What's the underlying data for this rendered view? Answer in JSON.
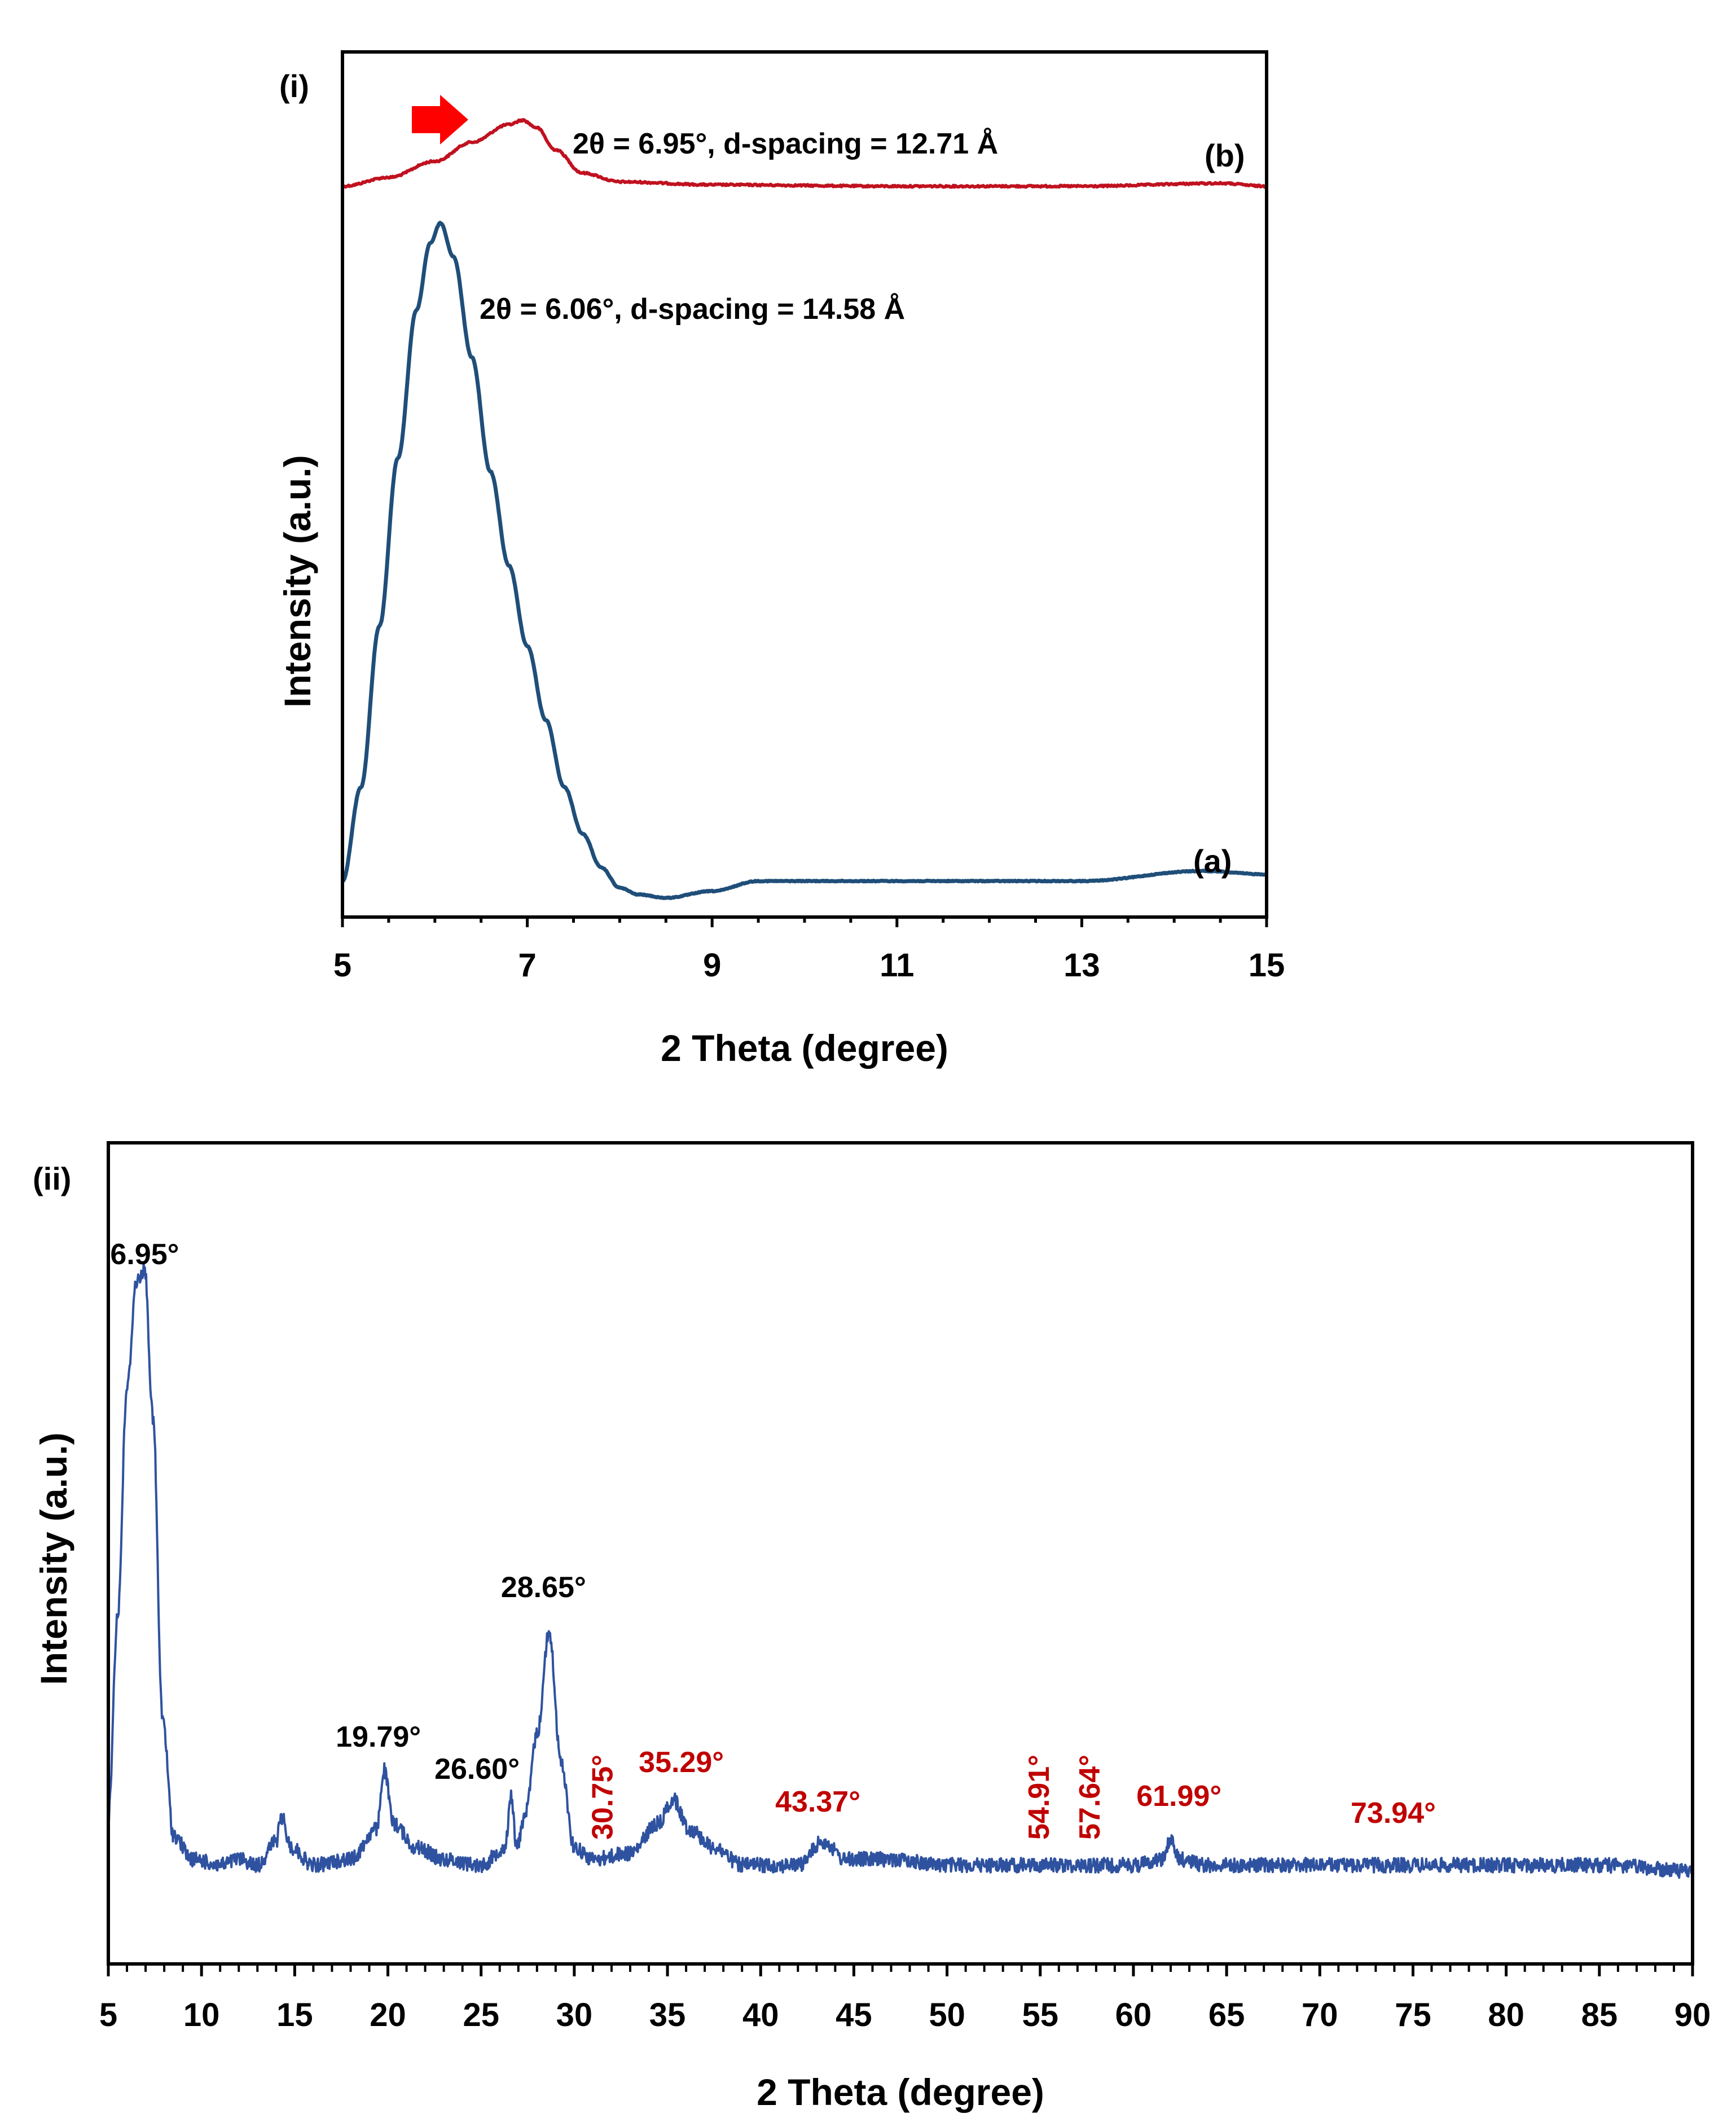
{
  "chart_data": [
    {
      "panel": "(i)",
      "type": "line",
      "xlabel": "2 Theta (degree)",
      "ylabel": "Intensity (a.u.)",
      "xlim": [
        5,
        15
      ],
      "xticks": [
        5,
        7,
        9,
        11,
        13,
        15
      ],
      "grid": false,
      "legend": "none",
      "series": [
        {
          "label": "(b)",
          "color": "#c0111f",
          "x": [
            5.0,
            5.5,
            6.0,
            6.4,
            6.8,
            6.95,
            7.1,
            7.3,
            7.6,
            8.0,
            9.0,
            11.0,
            13.0,
            14.5,
            15.0
          ],
          "y": [
            0.0,
            0.06,
            0.17,
            0.3,
            0.42,
            0.45,
            0.4,
            0.25,
            0.09,
            0.03,
            0.01,
            0.0,
            0.0,
            0.02,
            0.0
          ],
          "annotation": "2θ = 6.95°, d-spacing = 12.71 Å"
        },
        {
          "label": "(a)",
          "color": "#1f4e79",
          "x": [
            5.0,
            5.2,
            5.4,
            5.6,
            5.8,
            5.95,
            6.06,
            6.2,
            6.4,
            6.6,
            6.8,
            7.0,
            7.2,
            7.4,
            7.6,
            7.8,
            8.0,
            8.2,
            8.5,
            9.0,
            9.5,
            11.0,
            13.0,
            14.3,
            15.0
          ],
          "y": [
            0.02,
            0.16,
            0.4,
            0.65,
            0.87,
            0.97,
            1.0,
            0.95,
            0.8,
            0.63,
            0.49,
            0.37,
            0.26,
            0.16,
            0.09,
            0.04,
            0.01,
            0.0,
            -0.005,
            0.005,
            0.02,
            0.02,
            0.02,
            0.035,
            0.03
          ],
          "annotation": "2θ = 6.06°, d-spacing = 14.58 Å"
        }
      ],
      "arrow": {
        "direction": "right",
        "color": "#ff0000"
      }
    },
    {
      "panel": "(ii)",
      "type": "line",
      "xlabel": "2 Theta (degree)",
      "ylabel": "Intensity (a.u.)",
      "xlim": [
        5,
        90
      ],
      "xticks": [
        5,
        10,
        15,
        20,
        25,
        30,
        35,
        40,
        45,
        50,
        55,
        60,
        65,
        70,
        75,
        80,
        85,
        90
      ],
      "grid": false,
      "legend": "none",
      "series": [
        {
          "color": "#2f52a0",
          "x": [
            5.0,
            5.5,
            6.0,
            6.5,
            6.95,
            7.4,
            7.9,
            8.5,
            9.5,
            11.0,
            12.0,
            13.0,
            14.0,
            14.3,
            14.8,
            16.0,
            18.0,
            19.4,
            19.79,
            20.3,
            21.5,
            23.0,
            25.0,
            26.3,
            26.6,
            26.9,
            27.4,
            28.0,
            28.65,
            29.3,
            30.0,
            31.0,
            33.0,
            34.5,
            35.29,
            36.2,
            37.5,
            39.0,
            42.0,
            43.37,
            44.5,
            47.0,
            50.0,
            54.0,
            57.0,
            60.0,
            61.5,
            61.99,
            62.5,
            64.0,
            68.0,
            72.0,
            76.0,
            80.0,
            85.0,
            90.0
          ],
          "y": [
            0.08,
            0.42,
            0.8,
            0.98,
            1.0,
            0.75,
            0.25,
            0.05,
            0.01,
            0.0,
            0.01,
            0.0,
            0.04,
            0.08,
            0.03,
            0.0,
            0.01,
            0.06,
            0.16,
            0.07,
            0.03,
            0.01,
            0.0,
            0.03,
            0.12,
            0.03,
            0.09,
            0.22,
            0.39,
            0.17,
            0.03,
            0.01,
            0.02,
            0.07,
            0.11,
            0.06,
            0.03,
            0.0,
            0.0,
            0.04,
            0.01,
            0.01,
            0.0,
            0.0,
            0.0,
            0.0,
            0.01,
            0.04,
            0.01,
            0.0,
            0.0,
            0.0,
            0.0,
            0.0,
            0.0,
            -0.01
          ]
        }
      ],
      "peak_labels": [
        {
          "text": "6.95°",
          "x": 6.95,
          "color": "#000000",
          "rotated": false
        },
        {
          "text": "19.79°",
          "x": 19.79,
          "color": "#000000",
          "rotated": false
        },
        {
          "text": "26.60°",
          "x": 26.6,
          "color": "#000000",
          "rotated": false
        },
        {
          "text": "28.65°",
          "x": 28.65,
          "color": "#000000",
          "rotated": false
        },
        {
          "text": "30.75°",
          "x": 30.75,
          "color": "#c00000",
          "rotated": true
        },
        {
          "text": "35.29°",
          "x": 35.29,
          "color": "#c00000",
          "rotated": false
        },
        {
          "text": "43.37°",
          "x": 43.37,
          "color": "#c00000",
          "rotated": false
        },
        {
          "text": "54.91°",
          "x": 54.91,
          "color": "#c00000",
          "rotated": true
        },
        {
          "text": "57.64°",
          "x": 57.64,
          "color": "#c00000",
          "rotated": true
        },
        {
          "text": "61.99°",
          "x": 61.99,
          "color": "#c00000",
          "rotated": false
        },
        {
          "text": "73.94°",
          "x": 73.94,
          "color": "#c00000",
          "rotated": false
        }
      ]
    }
  ]
}
